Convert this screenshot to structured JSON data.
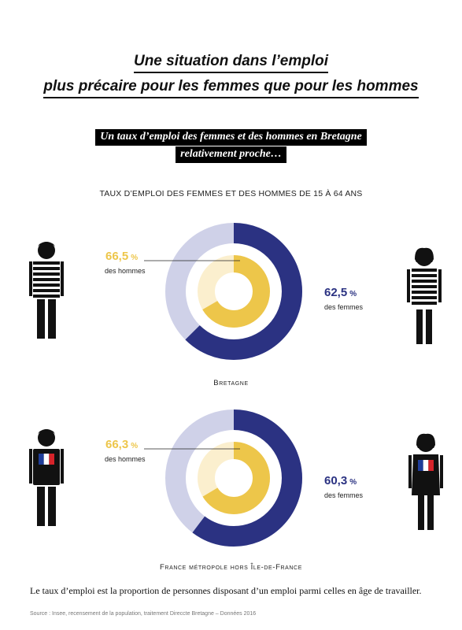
{
  "header": {
    "title_line1": "Une situation dans l’emploi",
    "title_line2": "plus précaire pour les femmes que pour les hommes",
    "banner_line1": "Un taux d’emploi des femmes et des hommes en Bretagne",
    "banner_line2": "relativement proche…"
  },
  "chart_heading": "TAUX D’EMPLOI DES FEMMES ET DES HOMMES DE 15 À 64 ANS",
  "colors": {
    "women": "#2b3282",
    "women_light": "#cfd1e8",
    "men": "#edc64a",
    "men_light": "#fbefce",
    "figure": "#111111"
  },
  "chart_data": [
    {
      "type": "pie",
      "region": "Bretagne",
      "series": [
        {
          "name": "des hommes",
          "value": 66.5,
          "value_text": "66,5",
          "unit": "%"
        },
        {
          "name": "des femmes",
          "value": 62.5,
          "value_text": "62,5",
          "unit": "%"
        }
      ]
    },
    {
      "type": "pie",
      "region": "France métropole hors Île-de-France",
      "series": [
        {
          "name": "des hommes",
          "value": 66.3,
          "value_text": "66,3",
          "unit": "%"
        },
        {
          "name": "des femmes",
          "value": 60.3,
          "value_text": "60,3",
          "unit": "%"
        }
      ]
    }
  ],
  "footnote": "Le taux d’emploi est la proportion de personnes disposant d’un emploi parmi celles en âge de travailler.",
  "source": "Source : Insee, recensement de la population, traitement Direccte Bretagne – Données 2016",
  "icons": [
    "man-figure-icon",
    "woman-figure-icon",
    "french-flag-icon"
  ]
}
